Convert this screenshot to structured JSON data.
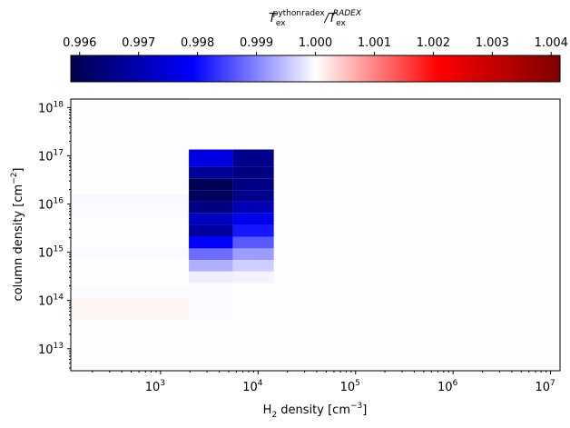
{
  "chart_data": {
    "type": "heatmap",
    "title": "",
    "colorbar": {
      "label_parts": [
        "T",
        "ex",
        "pythonradex",
        "/T",
        "ex",
        "RADEX"
      ],
      "ticks": [
        "0.996",
        "0.997",
        "0.998",
        "0.999",
        "1.000",
        "1.001",
        "1.002",
        "1.003",
        "1.004"
      ],
      "tick_values": [
        0.996,
        0.997,
        0.998,
        0.999,
        1.0,
        1.001,
        1.002,
        1.003,
        1.004
      ],
      "range": [
        0.99585,
        1.00415
      ],
      "colormap": "seismic",
      "orientation": "horizontal",
      "position": "top"
    },
    "xlabel_parts": [
      "H",
      "2",
      " density [cm",
      "−3",
      "]"
    ],
    "ylabel_parts": [
      "column density [cm",
      "−2",
      "]"
    ],
    "x_scale": "log",
    "y_scale": "log",
    "x_ticks": [
      {
        "base": "10",
        "exp": "3",
        "value": 1000
      },
      {
        "base": "10",
        "exp": "4",
        "value": 10000
      },
      {
        "base": "10",
        "exp": "5",
        "value": 100000
      },
      {
        "base": "10",
        "exp": "6",
        "value": 1000000
      },
      {
        "base": "10",
        "exp": "7",
        "value": 10000000
      }
    ],
    "y_ticks": [
      {
        "base": "10",
        "exp": "13",
        "value": 10000000000000.0
      },
      {
        "base": "10",
        "exp": "14",
        "value": 100000000000000.0
      },
      {
        "base": "10",
        "exp": "15",
        "value": 1000000000000000.0
      },
      {
        "base": "10",
        "exp": "16",
        "value": 1e+16
      },
      {
        "base": "10",
        "exp": "17",
        "value": 1e+17
      },
      {
        "base": "10",
        "exp": "18",
        "value": 1e+18
      }
    ],
    "xlim": [
      120,
      12500000
    ],
    "ylim": [
      3500000000000.0,
      1.5e+18
    ],
    "x_edges": [
      120,
      288,
      691,
      1660,
      3980,
      9550,
      22900,
      55000,
      132000,
      316000,
      759000,
      1820000,
      4370000,
      12500000
    ],
    "y_edges": [
      3500000000000.0,
      11400000000000.0,
      37200000000000.0,
      121000000000000.0,
      395000000000000.0,
      1290000000000000.0,
      4200000000000000.0,
      1.37e+16,
      4.46e+16,
      1.45e+17,
      4.74e+17,
      1.5e+18
    ],
    "x_edges_note": "",
    "cells": [
      {
        "x": [
          1950,
          5500
        ],
        "y": [
          230000000000000.0,
          400000000000000.0
        ],
        "value": 0.99985
      },
      {
        "x": [
          5500,
          14500
        ],
        "y": [
          230000000000000.0,
          400000000000000.0
        ],
        "value": 0.9999
      },
      {
        "x": [
          1950,
          5500
        ],
        "y": [
          400000000000000.0,
          690000000000000.0
        ],
        "value": 0.99935
      },
      {
        "x": [
          5500,
          14500
        ],
        "y": [
          400000000000000.0,
          690000000000000.0
        ],
        "value": 0.9996
      },
      {
        "x": [
          1950,
          5500
        ],
        "y": [
          690000000000000.0,
          1200000000000000.0
        ],
        "value": 0.9988
      },
      {
        "x": [
          5500,
          14500
        ],
        "y": [
          690000000000000.0,
          1200000000000000.0
        ],
        "value": 0.9992
      },
      {
        "x": [
          1950,
          5500
        ],
        "y": [
          1200000000000000.0,
          2100000000000000.0
        ],
        "value": 0.9979
      },
      {
        "x": [
          5500,
          14500
        ],
        "y": [
          1200000000000000.0,
          2100000000000000.0
        ],
        "value": 0.99865
      },
      {
        "x": [
          1950,
          5500
        ],
        "y": [
          2100000000000000.0,
          3700000000000000.0
        ],
        "value": 0.9968
      },
      {
        "x": [
          5500,
          14500
        ],
        "y": [
          2100000000000000.0,
          3700000000000000.0
        ],
        "value": 0.9981
      },
      {
        "x": [
          1950,
          5500
        ],
        "y": [
          3700000000000000.0,
          6400000000000000.0
        ],
        "value": 0.9972
      },
      {
        "x": [
          5500,
          14500
        ],
        "y": [
          3700000000000000.0,
          6400000000000000.0
        ],
        "value": 0.9977
      },
      {
        "x": [
          1950,
          5500
        ],
        "y": [
          6400000000000000.0,
          1.12e+16
        ],
        "value": 0.9965
      },
      {
        "x": [
          5500,
          14500
        ],
        "y": [
          6400000000000000.0,
          1.12e+16
        ],
        "value": 0.99705
      },
      {
        "x": [
          1950,
          5500
        ],
        "y": [
          1.12e+16,
          1.95e+16
        ],
        "value": 0.9961
      },
      {
        "x": [
          5500,
          14500
        ],
        "y": [
          1.12e+16,
          1.95e+16
        ],
        "value": 0.9966
      },
      {
        "x": [
          1950,
          5500
        ],
        "y": [
          1.95e+16,
          3.4e+16
        ],
        "value": 0.99595
      },
      {
        "x": [
          5500,
          14500
        ],
        "y": [
          1.95e+16,
          3.4e+16
        ],
        "value": 0.9965
      },
      {
        "x": [
          1950,
          5500
        ],
        "y": [
          3.4e+16,
          5.9e+16
        ],
        "value": 0.9967
      },
      {
        "x": [
          5500,
          14500
        ],
        "y": [
          3.4e+16,
          5.9e+16
        ],
        "value": 0.99645
      },
      {
        "x": [
          1950,
          5500
        ],
        "y": [
          5.9e+16,
          1.35e+17
        ],
        "value": 0.9976
      },
      {
        "x": [
          5500,
          14500
        ],
        "y": [
          5.9e+16,
          1.35e+17
        ],
        "value": 0.9966
      },
      {
        "x": [
          120,
          1950
        ],
        "y": [
          1e+16,
          1.6e+16
        ],
        "value": 0.99995
      },
      {
        "x": [
          120,
          1950
        ],
        "y": [
          5000000000000000.0,
          1e+16
        ],
        "value": 0.99997
      },
      {
        "x": [
          120,
          1950
        ],
        "y": [
          700000000000000.0,
          1300000000000000.0
        ],
        "value": 0.99996
      },
      {
        "x": [
          120,
          1950
        ],
        "y": [
          110000000000000.0,
          200000000000000.0
        ],
        "value": 0.99996
      },
      {
        "x": [
          120,
          1950
        ],
        "y": [
          40000000000000.0,
          110000000000000.0
        ],
        "value": 1.00008
      },
      {
        "x": [
          1950,
          5500
        ],
        "y": [
          40000000000000.0,
          230000000000000.0
        ],
        "value": 0.99997
      },
      {
        "x": [
          120,
          1950
        ],
        "y": [
          1.8e+16,
          1.5e+18
        ],
        "value": 0.99998
      },
      {
        "x": [
          14500,
          12500000
        ],
        "y": [
          3500000000000.0,
          1.5e+18
        ],
        "value": 0.99999
      }
    ]
  }
}
